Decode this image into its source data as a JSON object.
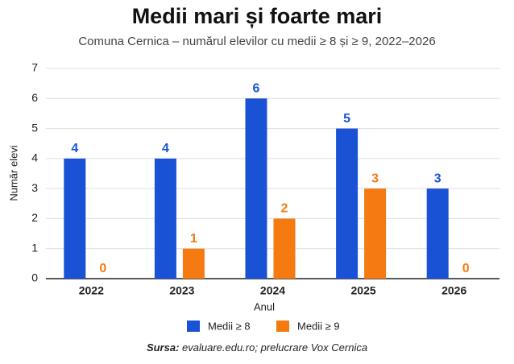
{
  "chart_data": {
    "type": "bar",
    "title": "Medii mari și foarte mari",
    "subtitle": "Comuna Cernica – numărul elevilor cu medii ≥ 8 și ≥ 9, 2022–2026",
    "x_label": "Anul",
    "y_label": "Număr elevi",
    "categories": [
      "2022",
      "2023",
      "2024",
      "2025",
      "2026"
    ],
    "series": [
      {
        "name": "Medii ≥ 8",
        "color": "#1a52d6",
        "values": [
          4,
          4,
          6,
          5,
          3
        ]
      },
      {
        "name": "Medii ≥ 9",
        "color": "#f57a12",
        "values": [
          0,
          1,
          2,
          3,
          0
        ]
      }
    ],
    "ylim": [
      0,
      7
    ],
    "yticks": [
      0,
      1,
      2,
      3,
      4,
      5,
      6,
      7
    ],
    "grid": true,
    "legend": "bottom",
    "source_label": "Sursa:",
    "source": "evaluare.edu.ro; prelucrare Vox Cernica"
  }
}
